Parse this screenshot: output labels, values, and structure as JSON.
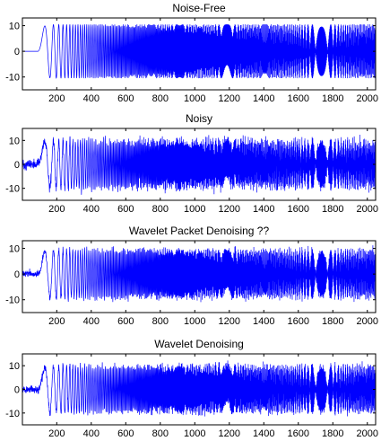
{
  "figure": {
    "background": "#ffffff",
    "line_color": "#0000ff"
  },
  "chart_data": [
    {
      "type": "line",
      "title": "Noise-Free",
      "xlim": [
        1,
        2048
      ],
      "ylim": [
        -15,
        13
      ],
      "xticks": [
        200,
        400,
        600,
        800,
        1000,
        1200,
        1400,
        1600,
        1800,
        2000
      ],
      "yticks": [
        10,
        0,
        -10
      ],
      "series": [
        {
          "generator": "doppler-like chirp",
          "amplitude": 10.5,
          "noise": 0,
          "samples": 2048
        }
      ]
    },
    {
      "type": "line",
      "title": "Noisy",
      "xlim": [
        1,
        2048
      ],
      "ylim": [
        -15,
        15
      ],
      "xticks": [
        200,
        400,
        600,
        800,
        1000,
        1200,
        1400,
        1600,
        1800,
        2000
      ],
      "yticks": [
        10,
        0,
        -10
      ],
      "series": [
        {
          "generator": "doppler-like chirp",
          "amplitude": 10,
          "noise": 1.3,
          "samples": 2048
        }
      ]
    },
    {
      "type": "line",
      "title": "Wavelet Packet Denoising ??",
      "xlim": [
        1,
        2048
      ],
      "ylim": [
        -15,
        13
      ],
      "xticks": [
        200,
        400,
        600,
        800,
        1000,
        1200,
        1400,
        1600,
        1800,
        2000
      ],
      "yticks": [
        10,
        0,
        -10
      ],
      "series": [
        {
          "generator": "doppler-like chirp",
          "amplitude": 9.5,
          "noise": 0.8,
          "samples": 2048
        }
      ]
    },
    {
      "type": "line",
      "title": "Wavelet Denoising",
      "xlim": [
        1,
        2048
      ],
      "ylim": [
        -15,
        15
      ],
      "xticks": [
        200,
        400,
        600,
        800,
        1000,
        1200,
        1400,
        1600,
        1800,
        2000
      ],
      "yticks": [
        10,
        0,
        -10
      ],
      "series": [
        {
          "generator": "doppler-like chirp",
          "amplitude": 10,
          "noise": 1.0,
          "samples": 2048
        }
      ]
    }
  ]
}
